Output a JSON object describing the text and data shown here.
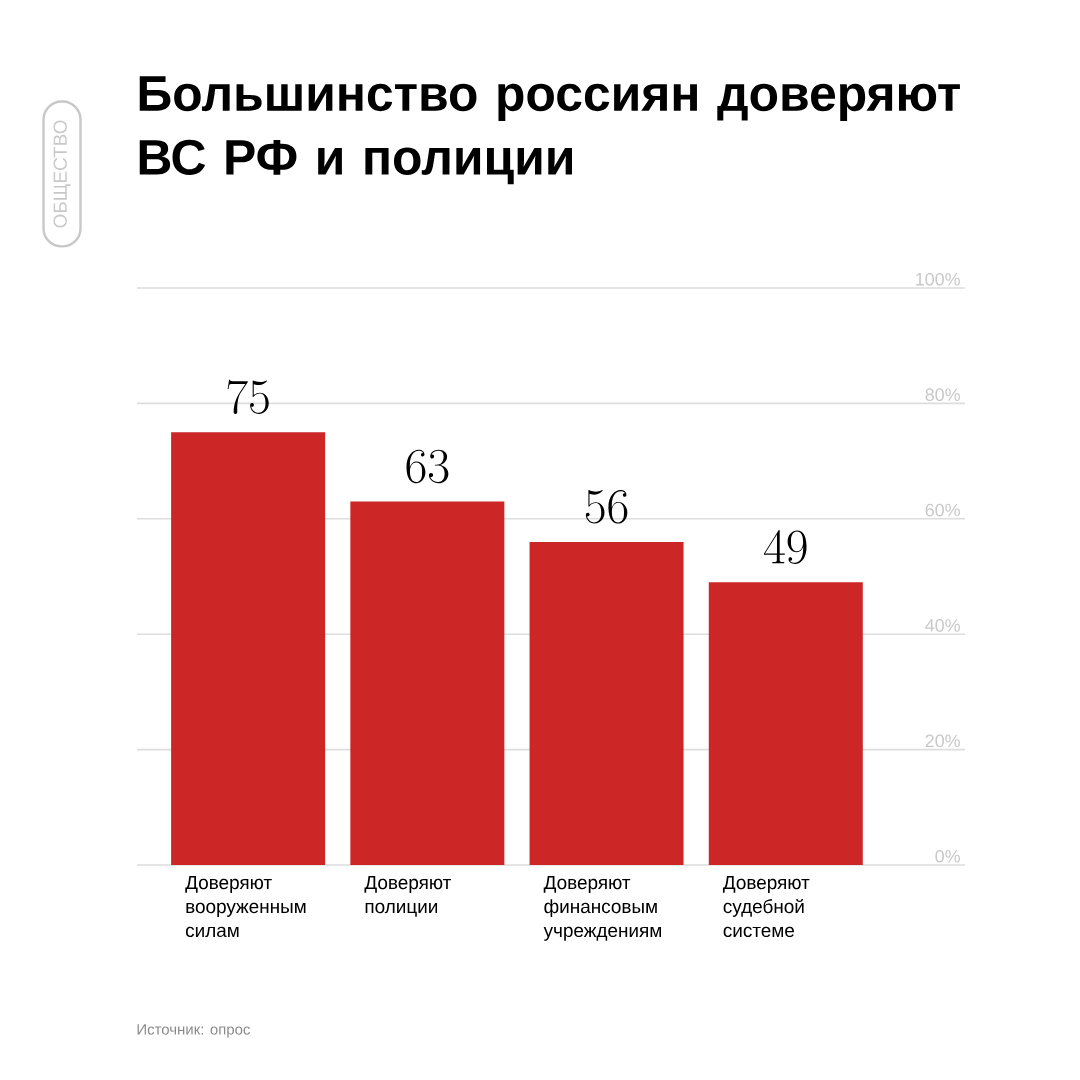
{
  "chart_data": {
    "type": "bar",
    "title": "Большинство россиян доверяют ВС РФ и полиции",
    "categories": [
      "Доверяют вооруженным силам",
      "Доверяют полиции",
      "Доверяют финансовым учреждениям",
      "Доверяют судебной системе"
    ],
    "values": [
      75,
      63,
      56,
      49
    ],
    "color": "#cd2626",
    "ylim": [
      0,
      100
    ],
    "yticks": [
      {
        "value": 0,
        "label": "0%"
      },
      {
        "value": 20,
        "label": "20%"
      },
      {
        "value": 40,
        "label": "40%"
      },
      {
        "value": 60,
        "label": "60%"
      },
      {
        "value": 80,
        "label": "80%"
      },
      {
        "value": 100,
        "label": "100%"
      }
    ],
    "grid": "y",
    "data_labels": true,
    "annotations": [
      "ОБЩЕСТВО",
      "Источник: опрос"
    ]
  }
}
